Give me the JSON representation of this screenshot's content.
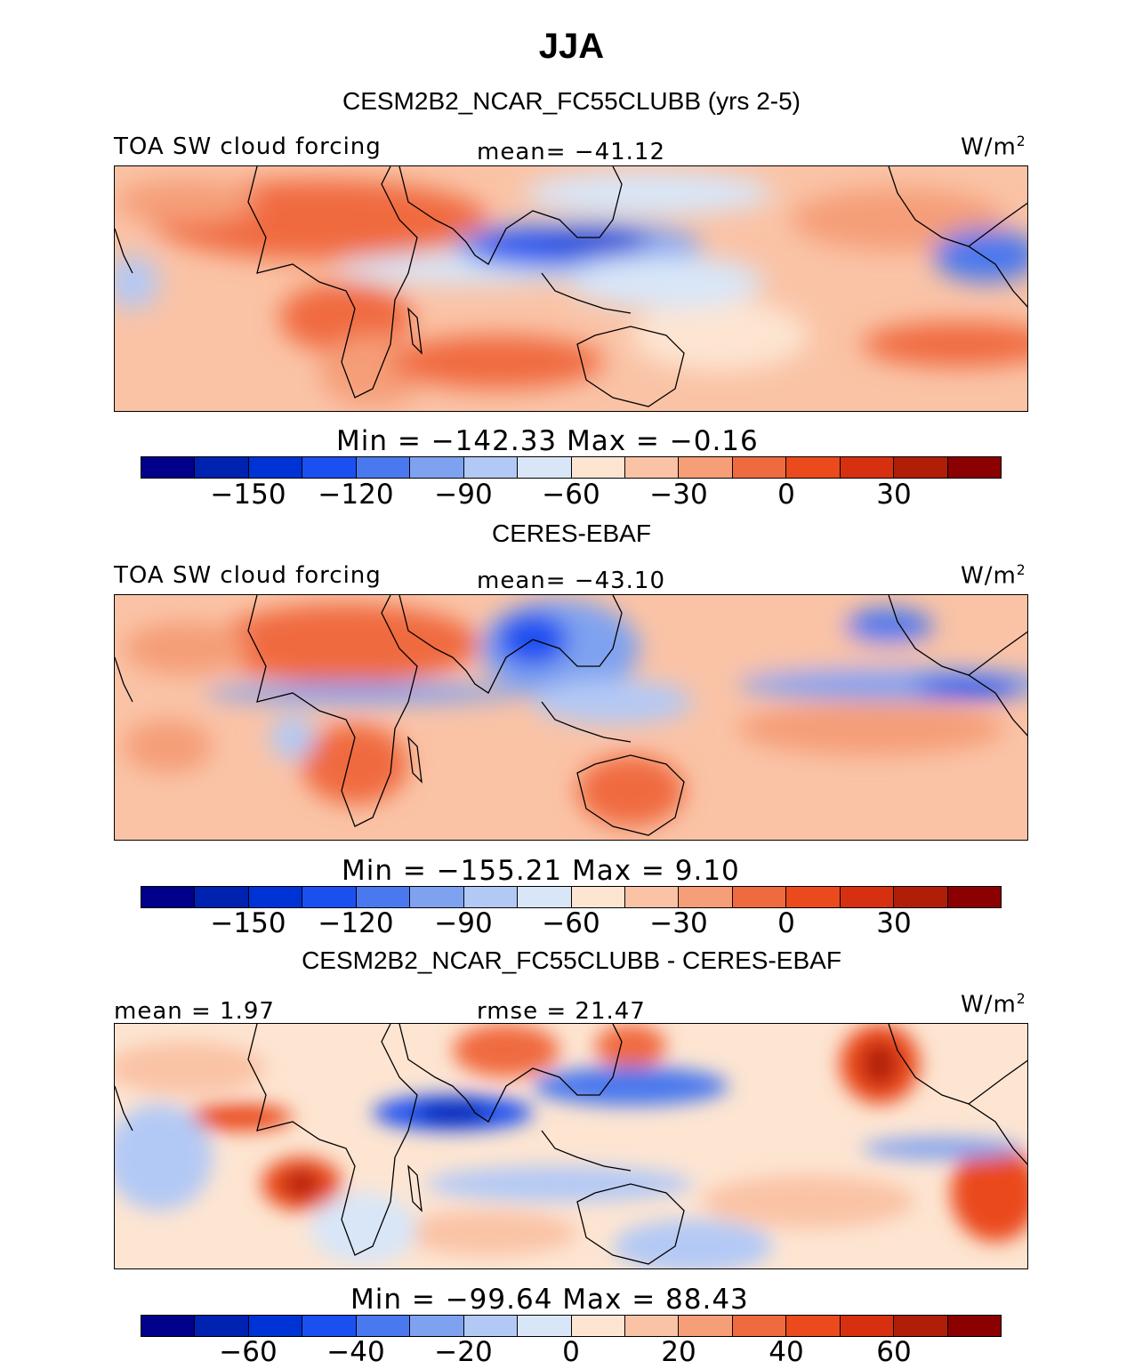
{
  "title": "JJA",
  "panels": [
    {
      "heading": "CESM2B2_NCAR_FC55CLUBB (yrs 2-5)",
      "left_label": "TOA SW cloud forcing",
      "center_label": "mean= −41.12",
      "units": "W/m",
      "units_exp": "2",
      "minmax": "Min = −142.33 Max =  −0.16"
    },
    {
      "heading": "CERES-EBAF",
      "left_label": "TOA SW cloud forcing",
      "center_label": "mean= −43.10",
      "units": "W/m",
      "units_exp": "2",
      "minmax": "Min = −155.21 Max =   9.10"
    },
    {
      "heading": "CESM2B2_NCAR_FC55CLUBB - CERES-EBAF",
      "left_label": "mean =   1.97",
      "center_label": "rmse =  21.47",
      "units": "W/m",
      "units_exp": "2",
      "minmax": "Min = −99.64 Max =  88.43"
    }
  ],
  "chart_data": [
    {
      "type": "heatmap",
      "title": "CESM2B2_NCAR_FC55CLUBB (yrs 2-5)",
      "variable": "TOA SW cloud forcing",
      "units": "W/m2",
      "mean": -41.12,
      "min": -142.33,
      "max": -0.16,
      "colorbar_ticks": [
        -150,
        -120,
        -90,
        -60,
        -30,
        0,
        30
      ],
      "colorbar_tick_labels": [
        "−150",
        "−120",
        "−90",
        "−60",
        "−30",
        "0",
        "30"
      ],
      "colorbar_range": [
        -180,
        60
      ],
      "levels": 16
    },
    {
      "type": "heatmap",
      "title": "CERES-EBAF",
      "variable": "TOA SW cloud forcing",
      "units": "W/m2",
      "mean": -43.1,
      "min": -155.21,
      "max": 9.1,
      "colorbar_ticks": [
        -150,
        -120,
        -90,
        -60,
        -30,
        0,
        30
      ],
      "colorbar_tick_labels": [
        "−150",
        "−120",
        "−90",
        "−60",
        "−30",
        "0",
        "30"
      ],
      "colorbar_range": [
        -180,
        60
      ],
      "levels": 16
    },
    {
      "type": "heatmap",
      "title": "CESM2B2_NCAR_FC55CLUBB - CERES-EBAF",
      "units": "W/m2",
      "mean": 1.97,
      "rmse": 21.47,
      "min": -99.64,
      "max": 88.43,
      "colorbar_ticks": [
        -60,
        -40,
        -20,
        0,
        20,
        40,
        60
      ],
      "colorbar_tick_labels": [
        "−60",
        "−40",
        "−20",
        "0",
        "20",
        "40",
        "60"
      ],
      "colorbar_range": [
        -80,
        80
      ],
      "levels": 16
    }
  ],
  "colorbar_colors": [
    "#00008b",
    "#0022b0",
    "#0033d6",
    "#1a4ff0",
    "#4a78ee",
    "#7fa2f0",
    "#b3c9f5",
    "#d8e6f8",
    "#fde5d2",
    "#fac3a6",
    "#f59e78",
    "#f06a40",
    "#ea4a1c",
    "#d63010",
    "#b01e08",
    "#8b0000"
  ]
}
